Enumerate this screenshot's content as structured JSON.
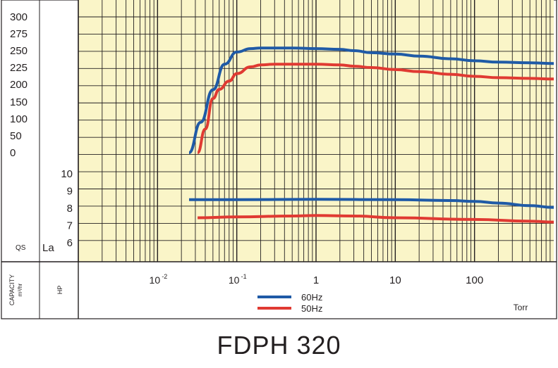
{
  "chart_data": {
    "type": "line",
    "title": "FDPH 320",
    "x_scale": "log",
    "x_unit": "Torr",
    "x_ticks": [
      {
        "value": 0.01,
        "base": "10",
        "exp": "-2"
      },
      {
        "value": 0.1,
        "base": "10",
        "exp": "-1"
      },
      {
        "value": 1,
        "label": "1"
      },
      {
        "value": 10,
        "label": "10"
      },
      {
        "value": 100,
        "label": "100"
      }
    ],
    "xlim": [
      0.001,
      1000
    ],
    "capacity_panel": {
      "ylabel": "QS",
      "ticks": [
        "300",
        "275",
        "250",
        "225",
        "200",
        "150",
        "100",
        "50",
        "0"
      ],
      "series": [
        {
          "name": "60Hz",
          "color": "#1f5aa6",
          "x": [
            0.025,
            0.035,
            0.05,
            0.07,
            0.1,
            0.15,
            0.2,
            0.3,
            0.5,
            1,
            2,
            3,
            5,
            10,
            20,
            50,
            100,
            200,
            500,
            1000
          ],
          "y": [
            0,
            90,
            185,
            230,
            248,
            253,
            254,
            254,
            254,
            253,
            252,
            250,
            247,
            245,
            242,
            238,
            235,
            233,
            232,
            231
          ]
        },
        {
          "name": "50Hz",
          "color": "#e03a32",
          "x": [
            0.032,
            0.04,
            0.05,
            0.06,
            0.08,
            0.1,
            0.15,
            0.2,
            0.3,
            0.5,
            1,
            2,
            3,
            5,
            10,
            20,
            50,
            100,
            200,
            500,
            1000
          ],
          "y": [
            0,
            70,
            160,
            186,
            205,
            216,
            226,
            229,
            230,
            230,
            230,
            229,
            227,
            225,
            222,
            219,
            215,
            212,
            210,
            209,
            208
          ]
        }
      ]
    },
    "hp_panel": {
      "ylabel": "La",
      "ticks": [
        "10",
        "9",
        "8",
        "7",
        "6"
      ],
      "series": [
        {
          "name": "60Hz",
          "color": "#1f5aa6",
          "x": [
            0.025,
            0.1,
            1,
            10,
            50,
            100,
            200,
            500,
            1000
          ],
          "y": [
            8.5,
            8.5,
            8.52,
            8.5,
            8.45,
            8.4,
            8.3,
            8.15,
            8.05
          ]
        },
        {
          "name": "50Hz",
          "color": "#e03a32",
          "x": [
            0.032,
            0.1,
            0.5,
            1,
            3,
            10,
            100,
            500,
            1000
          ],
          "y": [
            7.45,
            7.5,
            7.55,
            7.58,
            7.55,
            7.45,
            7.35,
            7.25,
            7.2
          ]
        }
      ]
    },
    "row_labels": {
      "capacity_label": "CAPACITY",
      "capacity_unit": "m³/hr",
      "hp_label": "HP"
    },
    "legend": {
      "placement": "bottom-center"
    },
    "grid": true,
    "colors": {
      "plot_bg": "#faf5c8",
      "grid": "#231f20"
    }
  }
}
